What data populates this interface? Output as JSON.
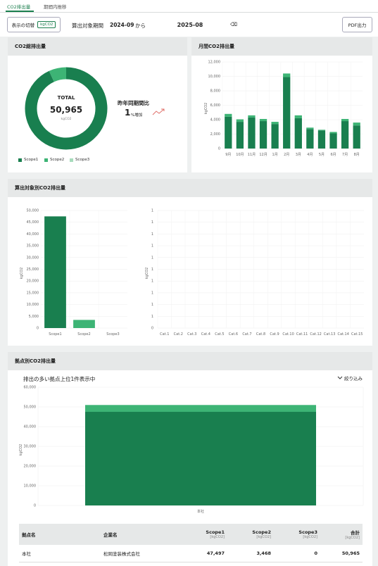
{
  "tabs": [
    {
      "label": "CO2排出量"
    },
    {
      "label": "期間内推移"
    }
  ],
  "toolbar": {
    "display_toggle_label": "表示の切替",
    "unit_pill": "kgCO2",
    "period_label": "算出対象期間",
    "period_start": "2024-09",
    "from_label": "から",
    "period_end": "2025-08",
    "pdf_label": "PDF出力"
  },
  "total_card": {
    "title": "CO2総排出量",
    "total_label": "TOTAL",
    "total_value": "50,965",
    "total_unit": "kgCO2",
    "yoy_label": "昨年同期間比",
    "yoy_value": "1",
    "yoy_suffix": "%増加",
    "legend": [
      "Scope1",
      "Scope2",
      "Scope3"
    ],
    "colors": {
      "scope1": "#197f4f",
      "scope2": "#3db475",
      "scope3": "#a7dcbc"
    },
    "chart_data": {
      "type": "pie",
      "categories": [
        "Scope1",
        "Scope2",
        "Scope3"
      ],
      "values": [
        47497,
        3468,
        0
      ]
    }
  },
  "monthly_card": {
    "title": "月間CO2排出量",
    "ylabel": "kgCO2",
    "chart_data": {
      "type": "bar",
      "categories": [
        "9月",
        "10月",
        "11月",
        "12月",
        "1月",
        "2月",
        "3月",
        "4月",
        "5月",
        "6月",
        "7月",
        "8月"
      ],
      "series": [
        {
          "name": "Scope1",
          "values": [
            4400,
            3700,
            4300,
            3800,
            3400,
            9900,
            4200,
            2700,
            2500,
            2100,
            3800,
            3200
          ]
        },
        {
          "name": "Scope2",
          "values": [
            400,
            350,
            300,
            300,
            300,
            500,
            400,
            200,
            100,
            200,
            300,
            400
          ]
        }
      ],
      "yticks": [
        "0",
        "2,000",
        "4,000",
        "6,000",
        "8,000",
        "10,000",
        "12,000"
      ],
      "ylim": [
        0,
        12000
      ]
    }
  },
  "target_card": {
    "title": "算出対象別CO2排出量",
    "left_chart": {
      "ylabel": "kgCO2",
      "chart_data": {
        "type": "bar",
        "categories": [
          "Scope1",
          "Scope2",
          "Scope3"
        ],
        "values": [
          47497,
          3468,
          0
        ],
        "yticks": [
          "0",
          "5,000",
          "10,000",
          "15,000",
          "20,000",
          "25,000",
          "30,000",
          "35,000",
          "40,000",
          "45,000",
          "50,000"
        ],
        "ylim": [
          0,
          50000
        ]
      }
    },
    "right_chart": {
      "ylabel": "kgCO2",
      "chart_data": {
        "type": "bar",
        "categories": [
          "Cat.1",
          "Cat.2",
          "Cat.3",
          "Cat.4",
          "Cat.5",
          "Cat.6",
          "Cat.7",
          "Cat.8",
          "Cat.9",
          "Cat.10",
          "Cat.11",
          "Cat.12",
          "Cat.13",
          "Cat.14",
          "Cat.15"
        ],
        "values": [
          0,
          0,
          0,
          0,
          0,
          0,
          0,
          0,
          0,
          0,
          0,
          0,
          0,
          0,
          0
        ],
        "yticks": [
          "0",
          "1",
          "1",
          "1",
          "1",
          "1",
          "1",
          "1",
          "1",
          "1",
          "1"
        ]
      }
    }
  },
  "site_card": {
    "title": "拠点別CO2排出量",
    "subtitle": "排出の多い拠点上位1件表示中",
    "filter_label": "絞り込み",
    "ylabel": "kgCO2",
    "chart_data": {
      "type": "bar",
      "categories": [
        "本社"
      ],
      "series": [
        {
          "name": "Scope1",
          "values": [
            47497
          ]
        },
        {
          "name": "Scope2",
          "values": [
            3468
          ]
        }
      ],
      "yticks": [
        "0",
        "10,000",
        "20,000",
        "30,000",
        "40,000",
        "50,000",
        "60,000"
      ],
      "ylim": [
        0,
        60000
      ]
    },
    "table": {
      "headers": [
        {
          "label": "拠点名",
          "unit": ""
        },
        {
          "label": "企業名",
          "unit": ""
        },
        {
          "label": "Scope1",
          "unit": "[kgCO2]"
        },
        {
          "label": "Scope2",
          "unit": "[kgCO2]"
        },
        {
          "label": "Scope3",
          "unit": "[kgCO2]"
        },
        {
          "label": "合計",
          "unit": "[kgCO2]"
        }
      ],
      "rows": [
        [
          "本社",
          "松岡塗装株式会社",
          "47,497",
          "3,468",
          "0",
          "50,965"
        ]
      ]
    }
  }
}
